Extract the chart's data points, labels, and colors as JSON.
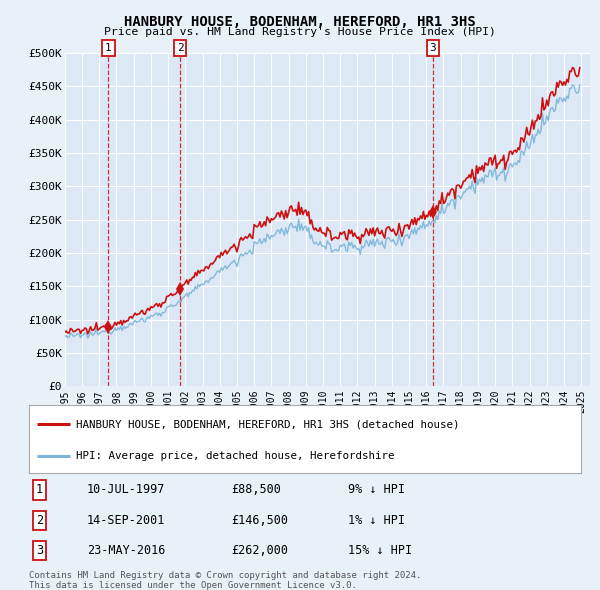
{
  "title": "HANBURY HOUSE, BODENHAM, HEREFORD, HR1 3HS",
  "subtitle": "Price paid vs. HM Land Registry's House Price Index (HPI)",
  "ylim": [
    0,
    500000
  ],
  "yticks": [
    0,
    50000,
    100000,
    150000,
    200000,
    250000,
    300000,
    350000,
    400000,
    450000,
    500000
  ],
  "ytick_labels": [
    "£0",
    "£50K",
    "£100K",
    "£150K",
    "£200K",
    "£250K",
    "£300K",
    "£350K",
    "£400K",
    "£450K",
    "£500K"
  ],
  "xlim_start": 1995.0,
  "xlim_end": 2025.5,
  "xticks": [
    1995,
    1996,
    1997,
    1998,
    1999,
    2000,
    2001,
    2002,
    2003,
    2004,
    2005,
    2006,
    2007,
    2008,
    2009,
    2010,
    2011,
    2012,
    2013,
    2014,
    2015,
    2016,
    2017,
    2018,
    2019,
    2020,
    2021,
    2022,
    2023,
    2024,
    2025
  ],
  "sale_dates": [
    1997.53,
    2001.71,
    2016.39
  ],
  "sale_prices": [
    88500,
    146500,
    262000
  ],
  "sale_labels": [
    "1",
    "2",
    "3"
  ],
  "hpi_color": "#7ab4d8",
  "price_color": "#cc1111",
  "legend_house_label": "HANBURY HOUSE, BODENHAM, HEREFORD, HR1 3HS (detached house)",
  "legend_hpi_label": "HPI: Average price, detached house, Herefordshire",
  "table_rows": [
    [
      "1",
      "10-JUL-1997",
      "£88,500",
      "9% ↓ HPI"
    ],
    [
      "2",
      "14-SEP-2001",
      "£146,500",
      "1% ↓ HPI"
    ],
    [
      "3",
      "23-MAY-2016",
      "£262,000",
      "15% ↓ HPI"
    ]
  ],
  "footnote1": "Contains HM Land Registry data © Crown copyright and database right 2024.",
  "footnote2": "This data is licensed under the Open Government Licence v3.0.",
  "background_color": "#e8f0f8",
  "plot_bg_color": "#dce8f5"
}
